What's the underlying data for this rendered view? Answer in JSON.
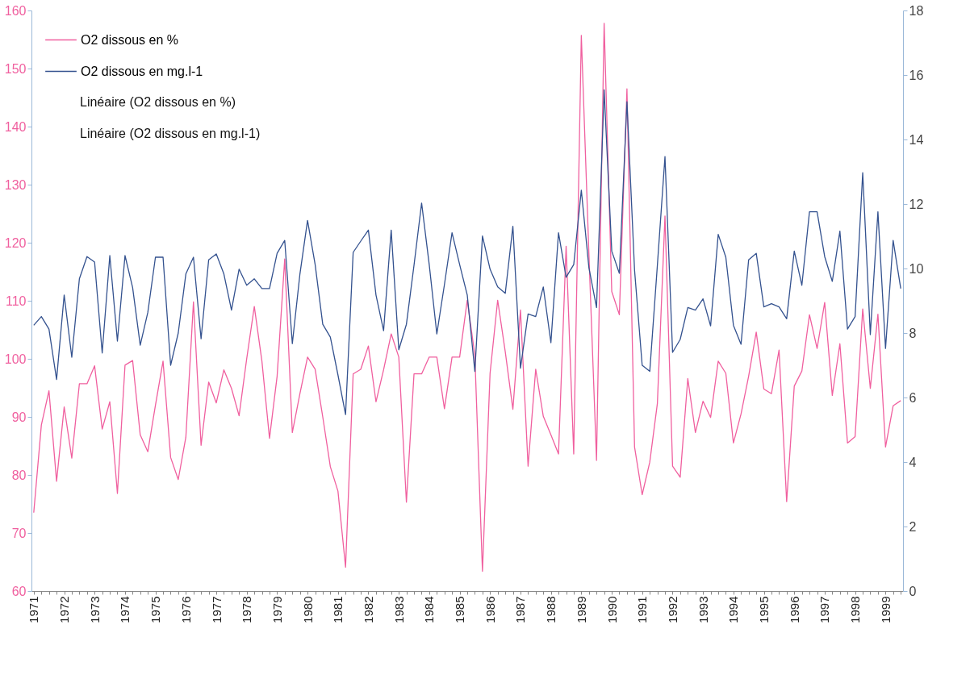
{
  "chart_data": {
    "type": "line",
    "categories": [
      "1971",
      null,
      null,
      null,
      "1972",
      null,
      null,
      null,
      "1973",
      null,
      null,
      null,
      "1974",
      null,
      null,
      null,
      "1975",
      null,
      null,
      null,
      "1976",
      null,
      null,
      null,
      "1977",
      null,
      null,
      null,
      "1978",
      null,
      null,
      null,
      "1979",
      null,
      null,
      null,
      "1980",
      null,
      null,
      null,
      "1981",
      null,
      null,
      null,
      "1982",
      null,
      null,
      null,
      "1983",
      null,
      null,
      null,
      "1984",
      null,
      null,
      null,
      "1985",
      null,
      null,
      null,
      "1986",
      null,
      null,
      null,
      "1987",
      null,
      null,
      null,
      "1988",
      null,
      null,
      null,
      "1989",
      null,
      null,
      null,
      "1990",
      null,
      null,
      null,
      "1991",
      null,
      null,
      null,
      "1992",
      null,
      null,
      null,
      "1993",
      null,
      null,
      null,
      "1994",
      null,
      null,
      null,
      "1995",
      null,
      null,
      null,
      "1996",
      null,
      null,
      null,
      "1997",
      null,
      null,
      null,
      "1998",
      null,
      null,
      null,
      "1999",
      null,
      null
    ],
    "series": [
      {
        "name": "O2 dissous en %",
        "color": "#f0609f",
        "axis": "y",
        "values": [
          73.5,
          88.6,
          94.5,
          78.9,
          91.7,
          82.9,
          95.7,
          95.7,
          98.8,
          87.9,
          92.6,
          76.8,
          98.9,
          99.7,
          86.9,
          84,
          92,
          99.6,
          83,
          79.2,
          86.5,
          109.8,
          85.1,
          96,
          92.4,
          98.1,
          94.9,
          90.2,
          100,
          109,
          99.6,
          86.3,
          97,
          117.2,
          87.3,
          94,
          100.3,
          98.2,
          90,
          81.4,
          77.2,
          64.1,
          97.4,
          98.2,
          102.2,
          92.6,
          98.1,
          104.3,
          100.3,
          75.3,
          97.4,
          97.4,
          100.3,
          100.3,
          91.4,
          100.3,
          100.3,
          110.1,
          100.6,
          63.4,
          97.5,
          110.1,
          101.2,
          91.3,
          108.4,
          81.5,
          98.2,
          90.1,
          86.9,
          83.6,
          119.4,
          83.6,
          155.7,
          118,
          82.5,
          157.8,
          111.6,
          107.6,
          146.5,
          84.8,
          76.6,
          82.2,
          92.3,
          124.6,
          81.5,
          79.6,
          96.6,
          87.3,
          92.7,
          89.9,
          99.6,
          97.5,
          85.5,
          90.5,
          97,
          104.6,
          94.8,
          94,
          101.5,
          75.4,
          95.3,
          97.9,
          107.6,
          101.8,
          109.7,
          93.7,
          102.6,
          85.5,
          86.6,
          108.6,
          94.9,
          107.7,
          84.8,
          91.9,
          92.8
        ]
      },
      {
        "name": "O2 dissous en mg.l-1",
        "color": "#34528f",
        "axis": "y2",
        "values": [
          8.24,
          8.51,
          8.12,
          6.56,
          9.18,
          7.25,
          9.68,
          10.37,
          10.2,
          7.38,
          10.4,
          7.75,
          10.4,
          9.41,
          7.62,
          8.64,
          10.35,
          10.35,
          7.0,
          8.0,
          9.83,
          10.35,
          7.82,
          10.27,
          10.45,
          9.83,
          8.71,
          9.98,
          9.48,
          9.68,
          9.38,
          9.38,
          10.47,
          10.87,
          7.67,
          9.83,
          11.49,
          10.12,
          8.27,
          7.87,
          6.7,
          5.47,
          10.5,
          10.85,
          11.19,
          9.18,
          8.07,
          11.19,
          7.48,
          8.27,
          10.1,
          12.03,
          10.12,
          7.97,
          9.5,
          11.11,
          10.12,
          9.18,
          6.81,
          11.01,
          9.98,
          9.43,
          9.23,
          11.31,
          6.91,
          8.59,
          8.51,
          9.43,
          7.7,
          11.11,
          9.73,
          10.12,
          12.43,
          10.02,
          8.79,
          15.54,
          10.54,
          9.85,
          15.17,
          9.95,
          7.0,
          6.81,
          10.1,
          13.47,
          7.4,
          7.8,
          8.79,
          8.71,
          9.06,
          8.22,
          11.06,
          10.35,
          8.24,
          7.65,
          10.27,
          10.47,
          8.81,
          8.91,
          8.81,
          8.44,
          10.54,
          9.48,
          11.76,
          11.76,
          10.37,
          9.6,
          11.16,
          8.12,
          8.51,
          12.97,
          7.95,
          11.76,
          7.52,
          10.87,
          9.38
        ]
      }
    ],
    "ylim": [
      60,
      160
    ],
    "yticks": [
      60,
      70,
      80,
      90,
      100,
      110,
      120,
      130,
      140,
      150,
      160
    ],
    "y2lim": [
      0,
      18
    ],
    "y2ticks": [
      0,
      2,
      4,
      6,
      8,
      10,
      12,
      14,
      16,
      18
    ],
    "annotations": [
      "Linéaire (O2 dissous en %)",
      "Linéaire (O2 dissous en mg.l-1)"
    ],
    "legend": "top left",
    "grid": false,
    "marker": "none",
    "line_style": "solid"
  }
}
